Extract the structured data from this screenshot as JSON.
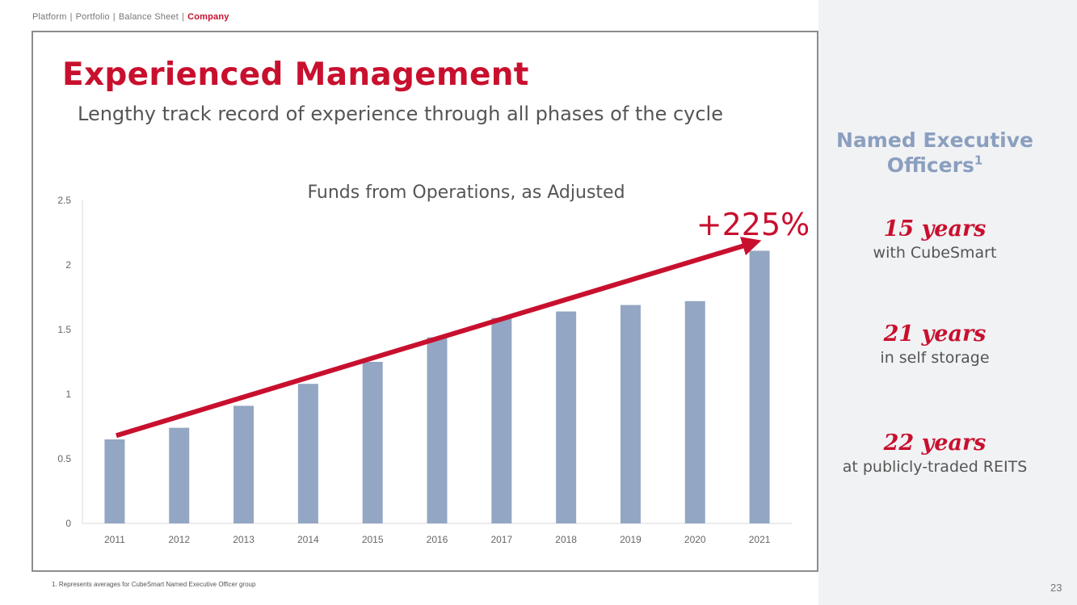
{
  "breadcrumb": {
    "items": [
      "Platform",
      "Portfolio",
      "Balance Sheet"
    ],
    "active": "Company",
    "separator": "|"
  },
  "title": "Experienced Management",
  "subtitle": "Lengthy track record of experience through all phases of the cycle",
  "chart_data": {
    "type": "bar",
    "title": "Funds from Operations, as Adjusted",
    "categories": [
      "2011",
      "2012",
      "2013",
      "2014",
      "2015",
      "2016",
      "2017",
      "2018",
      "2019",
      "2020",
      "2021"
    ],
    "values": [
      0.65,
      0.74,
      0.91,
      1.08,
      1.25,
      1.44,
      1.59,
      1.64,
      1.69,
      1.72,
      2.11
    ],
    "ylim": [
      0,
      2.5
    ],
    "yticks": [
      0,
      0.5,
      1,
      1.5,
      2,
      2.5
    ],
    "ytick_labels": [
      "0",
      "0.5",
      "1",
      "1.5",
      "2",
      "2.5"
    ],
    "xlabel": "",
    "ylabel": "",
    "grid": false,
    "annotation": {
      "text": "+225%",
      "arrow_from": {
        "category": "2011",
        "value": 0.68
      },
      "arrow_to": {
        "category": "2021",
        "value": 2.17
      }
    },
    "colors": {
      "bar": "#93a6c3",
      "accent": "#c8102e",
      "axis": "#d9d9d9",
      "tick_text": "#666666",
      "title_text": "#555555"
    }
  },
  "sidebar": {
    "heading": "Named Executive Officers",
    "heading_superscript": "1",
    "stats": [
      {
        "value": "15 years",
        "label": "with CubeSmart"
      },
      {
        "value": "21 years",
        "label": "in self storage"
      },
      {
        "value": "22 years",
        "label": "at publicly-traded REITS"
      }
    ]
  },
  "footnote": "1.   Represents averages for CubeSmart Named Executive Officer group",
  "page_number": "23",
  "colors": {
    "brand_red": "#c8102e",
    "side_heading": "#8b9fbf",
    "side_panel_bg": "#f1f2f4"
  }
}
